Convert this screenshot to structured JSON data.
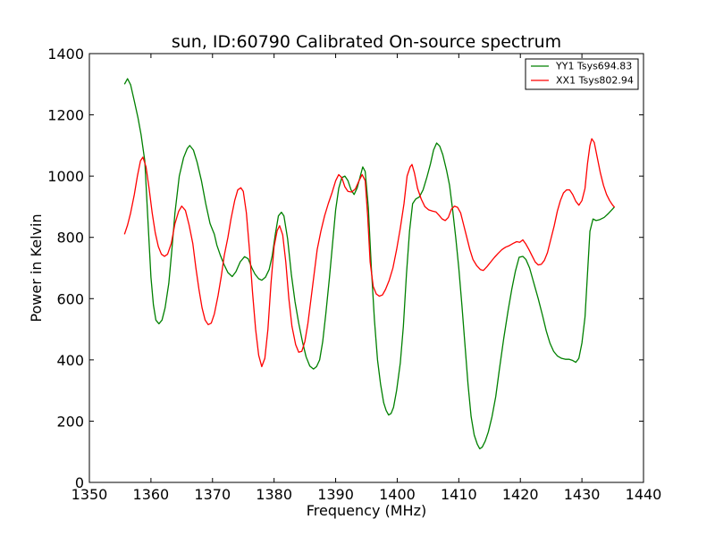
{
  "chart_data": {
    "type": "line",
    "title": "sun, ID:60790 Calibrated On-source spectrum",
    "xlabel": "Frequency (MHz)",
    "ylabel": "Power in Kelvin",
    "xlim": [
      1350,
      1440
    ],
    "ylim": [
      0,
      1400
    ],
    "xticks": [
      1350,
      1360,
      1370,
      1380,
      1390,
      1400,
      1410,
      1420,
      1430,
      1440
    ],
    "yticks": [
      0,
      200,
      400,
      600,
      800,
      1000,
      1200,
      1400
    ],
    "grid": false,
    "legend_location": "top-right",
    "series": [
      {
        "name": "YY1 Tsys694.83",
        "color": "#008000",
        "points": [
          [
            1355.7,
            1300
          ],
          [
            1356.2,
            1318
          ],
          [
            1356.7,
            1298
          ],
          [
            1357.3,
            1245
          ],
          [
            1357.9,
            1190
          ],
          [
            1358.4,
            1135
          ],
          [
            1359.0,
            1050
          ],
          [
            1359.5,
            860
          ],
          [
            1360.0,
            670
          ],
          [
            1360.4,
            580
          ],
          [
            1360.8,
            530
          ],
          [
            1361.3,
            518
          ],
          [
            1361.8,
            530
          ],
          [
            1362.3,
            570
          ],
          [
            1362.9,
            650
          ],
          [
            1363.4,
            760
          ],
          [
            1363.9,
            880
          ],
          [
            1364.6,
            1000
          ],
          [
            1365.3,
            1060
          ],
          [
            1365.9,
            1090
          ],
          [
            1366.3,
            1100
          ],
          [
            1366.9,
            1085
          ],
          [
            1367.5,
            1045
          ],
          [
            1368.2,
            985
          ],
          [
            1368.9,
            910
          ],
          [
            1369.6,
            845
          ],
          [
            1370.3,
            810
          ],
          [
            1370.7,
            775
          ],
          [
            1371.3,
            740
          ],
          [
            1371.9,
            710
          ],
          [
            1372.5,
            685
          ],
          [
            1373.2,
            672
          ],
          [
            1373.8,
            688
          ],
          [
            1374.5,
            720
          ],
          [
            1375.2,
            737
          ],
          [
            1375.8,
            730
          ],
          [
            1376.4,
            700
          ],
          [
            1376.9,
            680
          ],
          [
            1377.5,
            665
          ],
          [
            1378.0,
            660
          ],
          [
            1378.6,
            670
          ],
          [
            1379.2,
            695
          ],
          [
            1379.7,
            740
          ],
          [
            1380.2,
            810
          ],
          [
            1380.7,
            870
          ],
          [
            1381.2,
            882
          ],
          [
            1381.6,
            870
          ],
          [
            1382.2,
            795
          ],
          [
            1382.8,
            680
          ],
          [
            1383.4,
            590
          ],
          [
            1384.0,
            520
          ],
          [
            1384.6,
            460
          ],
          [
            1385.2,
            410
          ],
          [
            1385.8,
            380
          ],
          [
            1386.4,
            370
          ],
          [
            1386.9,
            378
          ],
          [
            1387.4,
            400
          ],
          [
            1387.9,
            460
          ],
          [
            1388.4,
            550
          ],
          [
            1389.0,
            670
          ],
          [
            1389.5,
            780
          ],
          [
            1390.0,
            890
          ],
          [
            1390.5,
            960
          ],
          [
            1391.0,
            995
          ],
          [
            1391.5,
            1000
          ],
          [
            1392.0,
            985
          ],
          [
            1392.5,
            955
          ],
          [
            1393.0,
            940
          ],
          [
            1393.5,
            962
          ],
          [
            1394.0,
            1000
          ],
          [
            1394.4,
            1030
          ],
          [
            1394.8,
            1015
          ],
          [
            1395.3,
            900
          ],
          [
            1395.8,
            700
          ],
          [
            1396.3,
            530
          ],
          [
            1396.8,
            400
          ],
          [
            1397.3,
            320
          ],
          [
            1397.8,
            260
          ],
          [
            1398.2,
            235
          ],
          [
            1398.6,
            220
          ],
          [
            1399.0,
            225
          ],
          [
            1399.4,
            245
          ],
          [
            1399.9,
            300
          ],
          [
            1400.5,
            390
          ],
          [
            1401.0,
            510
          ],
          [
            1401.5,
            680
          ],
          [
            1402.0,
            820
          ],
          [
            1402.5,
            910
          ],
          [
            1403.0,
            925
          ],
          [
            1403.6,
            932
          ],
          [
            1404.2,
            955
          ],
          [
            1404.8,
            995
          ],
          [
            1405.4,
            1040
          ],
          [
            1405.9,
            1085
          ],
          [
            1406.4,
            1108
          ],
          [
            1406.9,
            1098
          ],
          [
            1407.4,
            1070
          ],
          [
            1408.0,
            1020
          ],
          [
            1408.5,
            970
          ],
          [
            1409.0,
            890
          ],
          [
            1409.5,
            800
          ],
          [
            1410.0,
            700
          ],
          [
            1410.5,
            580
          ],
          [
            1411.0,
            450
          ],
          [
            1411.5,
            320
          ],
          [
            1412.0,
            215
          ],
          [
            1412.5,
            155
          ],
          [
            1413.0,
            125
          ],
          [
            1413.4,
            110
          ],
          [
            1413.8,
            115
          ],
          [
            1414.3,
            135
          ],
          [
            1414.8,
            165
          ],
          [
            1415.4,
            215
          ],
          [
            1416.0,
            280
          ],
          [
            1416.6,
            370
          ],
          [
            1417.3,
            470
          ],
          [
            1418.0,
            560
          ],
          [
            1418.6,
            630
          ],
          [
            1419.2,
            690
          ],
          [
            1419.8,
            735
          ],
          [
            1420.4,
            738
          ],
          [
            1420.9,
            728
          ],
          [
            1421.5,
            700
          ],
          [
            1422.2,
            650
          ],
          [
            1422.9,
            600
          ],
          [
            1423.6,
            545
          ],
          [
            1424.2,
            495
          ],
          [
            1424.8,
            455
          ],
          [
            1425.4,
            428
          ],
          [
            1426.0,
            413
          ],
          [
            1426.7,
            405
          ],
          [
            1427.3,
            402
          ],
          [
            1427.9,
            402
          ],
          [
            1428.5,
            398
          ],
          [
            1429.0,
            392
          ],
          [
            1429.5,
            405
          ],
          [
            1430.0,
            455
          ],
          [
            1430.5,
            540
          ],
          [
            1430.9,
            680
          ],
          [
            1431.3,
            820
          ],
          [
            1431.8,
            860
          ],
          [
            1432.3,
            855
          ],
          [
            1432.9,
            858
          ],
          [
            1433.6,
            865
          ],
          [
            1434.3,
            878
          ],
          [
            1435.0,
            893
          ],
          [
            1435.3,
            900
          ]
        ]
      },
      {
        "name": "XX1 Tsys802.94",
        "color": "#ff0000",
        "points": [
          [
            1355.7,
            810
          ],
          [
            1356.2,
            840
          ],
          [
            1356.7,
            880
          ],
          [
            1357.3,
            940
          ],
          [
            1357.8,
            1000
          ],
          [
            1358.3,
            1050
          ],
          [
            1358.7,
            1062
          ],
          [
            1359.2,
            1030
          ],
          [
            1359.7,
            960
          ],
          [
            1360.2,
            880
          ],
          [
            1360.7,
            815
          ],
          [
            1361.2,
            770
          ],
          [
            1361.7,
            745
          ],
          [
            1362.2,
            738
          ],
          [
            1362.7,
            745
          ],
          [
            1363.3,
            780
          ],
          [
            1363.9,
            845
          ],
          [
            1364.5,
            885
          ],
          [
            1365.0,
            902
          ],
          [
            1365.6,
            888
          ],
          [
            1366.2,
            840
          ],
          [
            1366.8,
            780
          ],
          [
            1367.3,
            700
          ],
          [
            1367.8,
            630
          ],
          [
            1368.3,
            570
          ],
          [
            1368.8,
            530
          ],
          [
            1369.3,
            515
          ],
          [
            1369.8,
            520
          ],
          [
            1370.3,
            550
          ],
          [
            1370.9,
            610
          ],
          [
            1371.4,
            670
          ],
          [
            1371.9,
            740
          ],
          [
            1372.5,
            800
          ],
          [
            1373.0,
            860
          ],
          [
            1373.6,
            920
          ],
          [
            1374.1,
            955
          ],
          [
            1374.6,
            962
          ],
          [
            1375.0,
            950
          ],
          [
            1375.5,
            880
          ],
          [
            1376.0,
            760
          ],
          [
            1376.5,
            620
          ],
          [
            1377.0,
            500
          ],
          [
            1377.5,
            415
          ],
          [
            1378.0,
            378
          ],
          [
            1378.5,
            405
          ],
          [
            1379.0,
            500
          ],
          [
            1379.5,
            650
          ],
          [
            1380.0,
            770
          ],
          [
            1380.5,
            822
          ],
          [
            1380.9,
            838
          ],
          [
            1381.4,
            808
          ],
          [
            1381.9,
            720
          ],
          [
            1382.4,
            600
          ],
          [
            1382.9,
            510
          ],
          [
            1383.5,
            450
          ],
          [
            1384.0,
            425
          ],
          [
            1384.5,
            428
          ],
          [
            1385.0,
            460
          ],
          [
            1385.5,
            520
          ],
          [
            1386.0,
            600
          ],
          [
            1386.5,
            680
          ],
          [
            1387.0,
            760
          ],
          [
            1387.6,
            820
          ],
          [
            1388.2,
            870
          ],
          [
            1388.8,
            910
          ],
          [
            1389.4,
            945
          ],
          [
            1390.0,
            985
          ],
          [
            1390.5,
            1005
          ],
          [
            1391.0,
            995
          ],
          [
            1391.5,
            965
          ],
          [
            1392.0,
            950
          ],
          [
            1392.6,
            948
          ],
          [
            1393.2,
            958
          ],
          [
            1393.8,
            985
          ],
          [
            1394.3,
            1005
          ],
          [
            1394.8,
            985
          ],
          [
            1395.2,
            870
          ],
          [
            1395.6,
            720
          ],
          [
            1396.1,
            640
          ],
          [
            1396.6,
            615
          ],
          [
            1397.1,
            608
          ],
          [
            1397.6,
            612
          ],
          [
            1398.1,
            630
          ],
          [
            1398.7,
            660
          ],
          [
            1399.3,
            700
          ],
          [
            1399.9,
            760
          ],
          [
            1400.5,
            830
          ],
          [
            1401.1,
            910
          ],
          [
            1401.6,
            1000
          ],
          [
            1402.1,
            1030
          ],
          [
            1402.4,
            1038
          ],
          [
            1402.8,
            1010
          ],
          [
            1403.3,
            960
          ],
          [
            1403.9,
            925
          ],
          [
            1404.5,
            900
          ],
          [
            1405.1,
            890
          ],
          [
            1405.7,
            886
          ],
          [
            1406.3,
            883
          ],
          [
            1406.8,
            872
          ],
          [
            1407.3,
            860
          ],
          [
            1407.8,
            855
          ],
          [
            1408.3,
            865
          ],
          [
            1408.8,
            892
          ],
          [
            1409.3,
            902
          ],
          [
            1409.8,
            898
          ],
          [
            1410.3,
            880
          ],
          [
            1410.8,
            840
          ],
          [
            1411.3,
            800
          ],
          [
            1411.8,
            760
          ],
          [
            1412.3,
            728
          ],
          [
            1412.9,
            708
          ],
          [
            1413.5,
            695
          ],
          [
            1414.0,
            692
          ],
          [
            1414.6,
            705
          ],
          [
            1415.2,
            720
          ],
          [
            1415.8,
            735
          ],
          [
            1416.4,
            748
          ],
          [
            1417.0,
            760
          ],
          [
            1417.6,
            768
          ],
          [
            1418.2,
            773
          ],
          [
            1418.8,
            780
          ],
          [
            1419.4,
            786
          ],
          [
            1419.9,
            784
          ],
          [
            1420.4,
            792
          ],
          [
            1420.9,
            778
          ],
          [
            1421.4,
            760
          ],
          [
            1421.9,
            740
          ],
          [
            1422.4,
            720
          ],
          [
            1422.9,
            710
          ],
          [
            1423.4,
            712
          ],
          [
            1423.9,
            725
          ],
          [
            1424.4,
            750
          ],
          [
            1424.9,
            790
          ],
          [
            1425.5,
            838
          ],
          [
            1426.0,
            885
          ],
          [
            1426.5,
            920
          ],
          [
            1427.0,
            945
          ],
          [
            1427.5,
            955
          ],
          [
            1428.0,
            955
          ],
          [
            1428.5,
            940
          ],
          [
            1429.0,
            918
          ],
          [
            1429.5,
            905
          ],
          [
            1430.0,
            920
          ],
          [
            1430.5,
            960
          ],
          [
            1430.9,
            1040
          ],
          [
            1431.3,
            1100
          ],
          [
            1431.6,
            1122
          ],
          [
            1432.0,
            1110
          ],
          [
            1432.5,
            1060
          ],
          [
            1433.0,
            1010
          ],
          [
            1433.5,
            970
          ],
          [
            1434.0,
            940
          ],
          [
            1434.5,
            920
          ],
          [
            1435.0,
            905
          ],
          [
            1435.3,
            898
          ]
        ]
      }
    ]
  }
}
